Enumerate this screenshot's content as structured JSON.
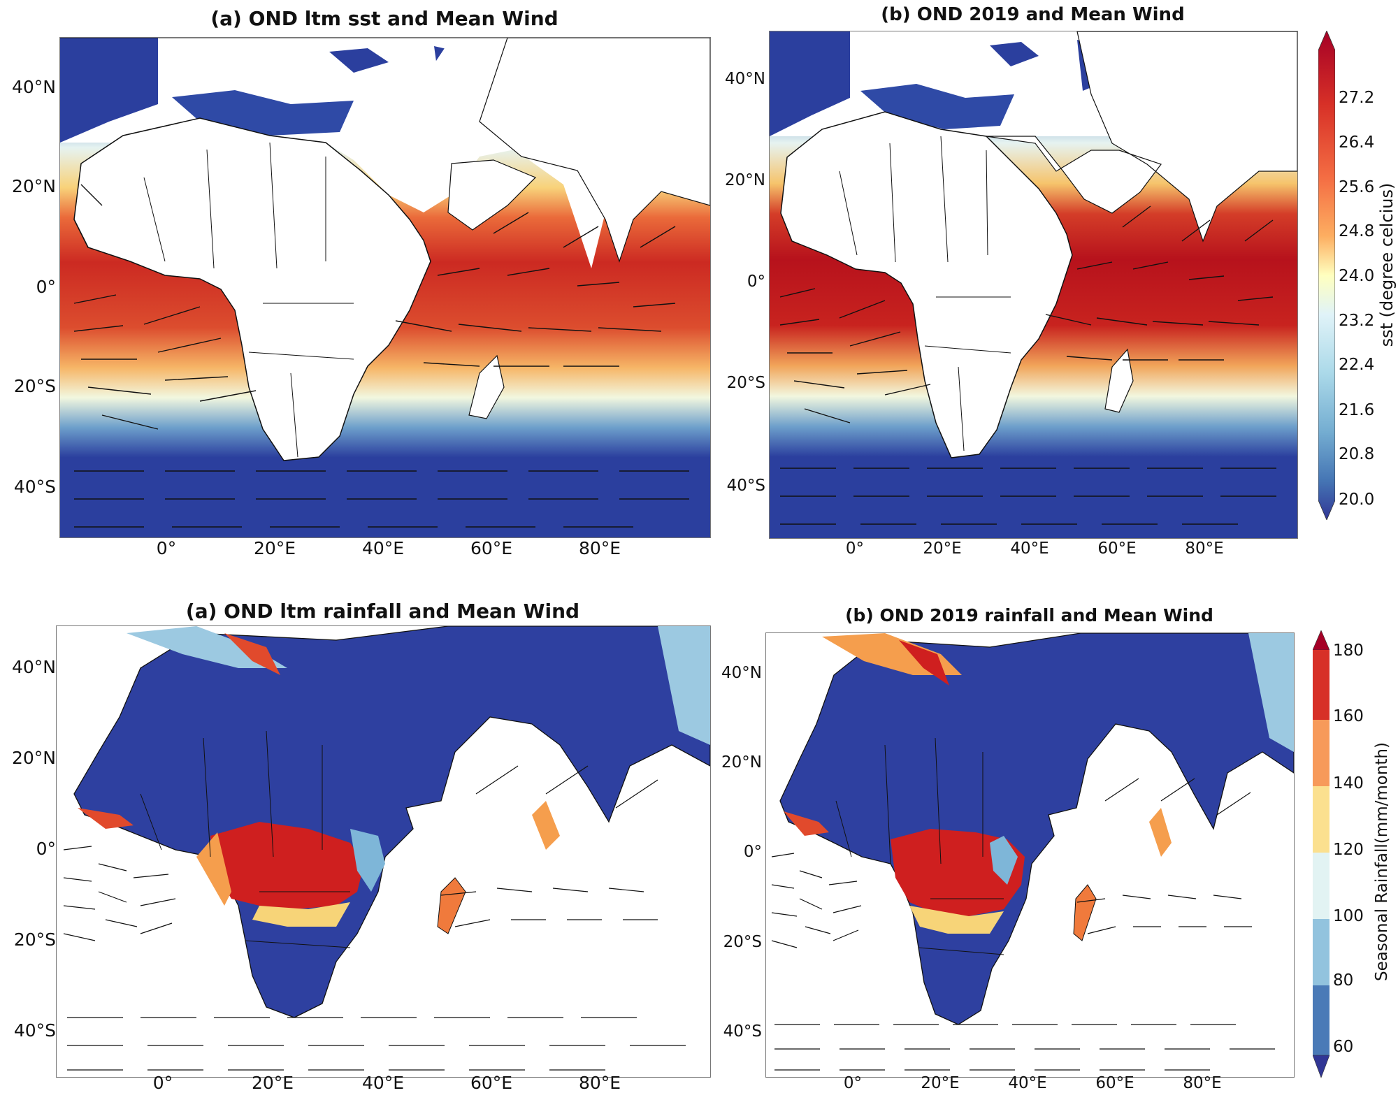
{
  "panels": {
    "sst_ltm": {
      "title": "(a) OND ltm sst and Mean Wind"
    },
    "sst_2019": {
      "title": "(b) OND 2019 and Mean Wind"
    },
    "rain_ltm": {
      "title": "(a) OND ltm rainfall and Mean Wind"
    },
    "rain_2019": {
      "title": "(b) OND 2019 rainfall and Mean Wind"
    }
  },
  "axes": {
    "lat_top": [
      "40°N",
      "20°N",
      "0°",
      "20°S",
      "40°S"
    ],
    "lon": [
      "0°",
      "20°E",
      "40°E",
      "60°E",
      "80°E"
    ]
  },
  "colorbars": {
    "sst": {
      "label": "sst (degree celcius)",
      "ticks": [
        "27.2",
        "26.4",
        "25.6",
        "24.8",
        "24.0",
        "23.2",
        "22.4",
        "21.6",
        "20.8",
        "20.0"
      ]
    },
    "rain": {
      "label": "Seasonal Rainfall(mm/month)",
      "ticks": [
        "180",
        "160",
        "140",
        "120",
        "100",
        "80",
        "60"
      ]
    }
  },
  "colors": {
    "land_outline": "#111111",
    "cold": "#2b3f9e",
    "warm": "#c2191f",
    "rain_dry": "#2e40a0",
    "rain_wet": "#cf1f1f"
  }
}
